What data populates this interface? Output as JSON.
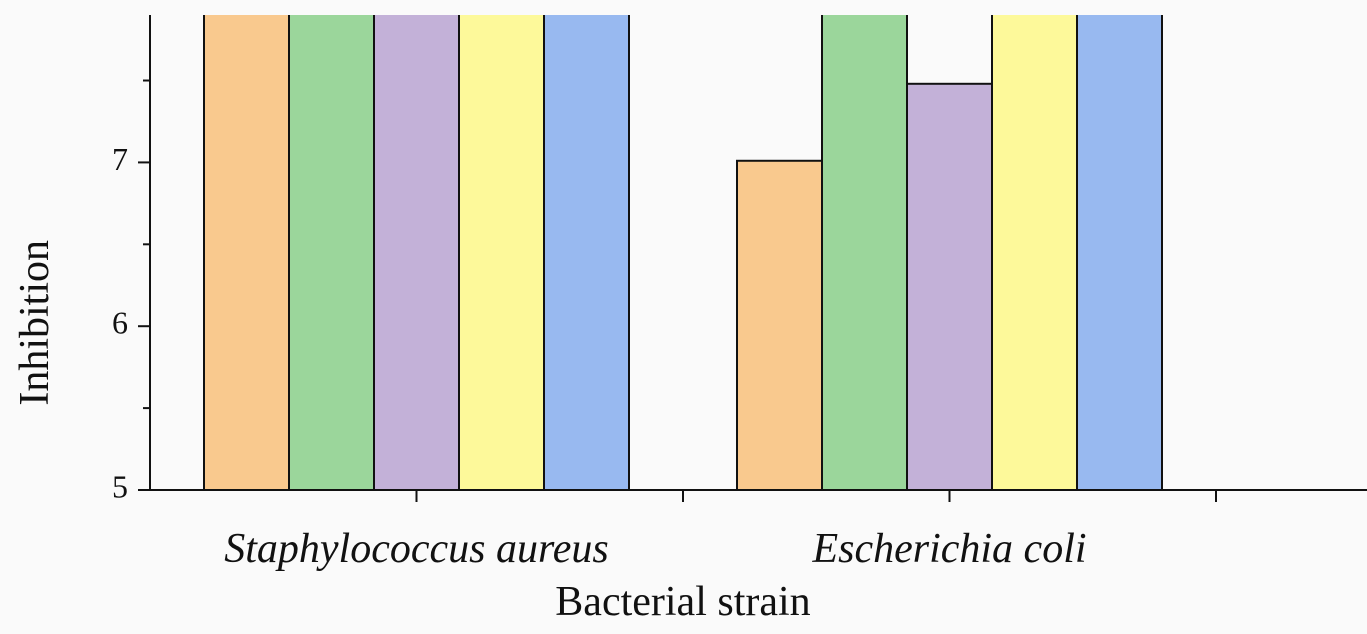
{
  "chart_data": {
    "type": "bar",
    "y_label": "Inhibition",
    "x_label": "Bacterial strain",
    "categories": [
      "Staphylococcus aureus",
      "Escherichia coli"
    ],
    "series": [
      {
        "color": "#f9c98e",
        "values": [
          8.2,
          7.01
        ]
      },
      {
        "color": "#9bd69b",
        "values": [
          8.2,
          8.2
        ]
      },
      {
        "color": "#c3b1d8",
        "values": [
          8.2,
          7.48
        ]
      },
      {
        "color": "#fdf99a",
        "values": [
          8.2,
          8.2
        ]
      },
      {
        "color": "#98b9f0",
        "values": [
          8.2,
          8.2
        ]
      }
    ],
    "ylim": [
      5,
      7.9
    ],
    "yticks": [
      5,
      6,
      7
    ],
    "yminorticks": [
      5.5,
      6.5,
      7.5
    ]
  }
}
